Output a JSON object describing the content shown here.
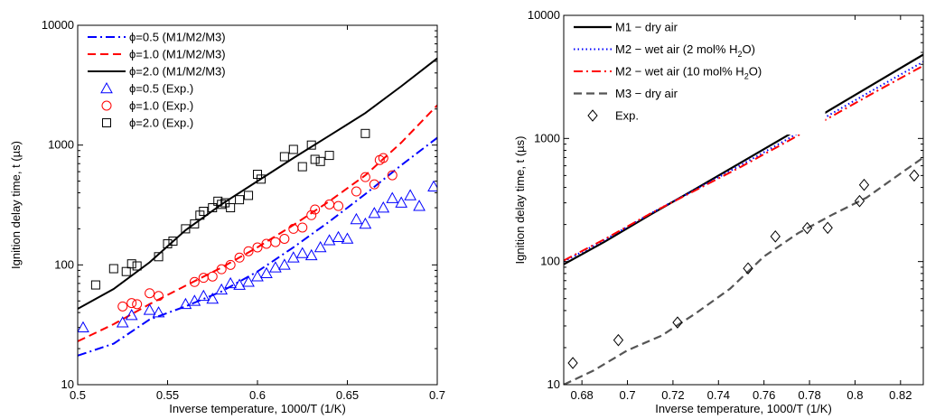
{
  "chart_data": [
    {
      "type": "scatter",
      "xlabel": "Inverse temperature, 1000/T (1/K)",
      "ylabel": "Ignition delay time, t (µs)",
      "xlim": [
        0.5,
        0.7
      ],
      "ylim": [
        10,
        10000
      ],
      "yscale": "log",
      "grid": false,
      "legend_position": "top-left",
      "x_ticks": [
        0.5,
        0.55,
        0.6,
        0.65,
        0.7
      ],
      "x_tick_labels": [
        "0.5",
        "0.55",
        "0.6",
        "0.65",
        "0.7"
      ],
      "y_ticks": [
        10,
        100,
        1000,
        10000
      ],
      "y_tick_labels": [
        "10",
        "100",
        "1000",
        "10000"
      ],
      "series": [
        {
          "name": "ϕ=0.5 (M1/M2/M3)",
          "kind": "line",
          "color": "#0000ff",
          "dash": "dashdot",
          "x": [
            0.5,
            0.52,
            0.54,
            0.56,
            0.58,
            0.6,
            0.62,
            0.64,
            0.66,
            0.68,
            0.7
          ],
          "y": [
            17.5,
            22,
            35,
            45,
            60,
            88,
            140,
            230,
            390,
            680,
            1150
          ]
        },
        {
          "name": "ϕ=1.0 (M1/M2/M3)",
          "kind": "line",
          "color": "#ff0000",
          "dash": "dash",
          "x": [
            0.5,
            0.52,
            0.54,
            0.56,
            0.58,
            0.6,
            0.62,
            0.64,
            0.66,
            0.68,
            0.7
          ],
          "y": [
            23,
            32,
            47,
            67,
            95,
            140,
            215,
            340,
            560,
            1050,
            2150
          ]
        },
        {
          "name": "ϕ=2.0 (M1/M2/M3)",
          "kind": "line",
          "color": "#000000",
          "dash": "solid",
          "x": [
            0.5,
            0.52,
            0.54,
            0.56,
            0.58,
            0.6,
            0.62,
            0.64,
            0.66,
            0.68,
            0.7
          ],
          "y": [
            43,
            63,
            105,
            195,
            320,
            500,
            780,
            1200,
            1850,
            3100,
            5300
          ]
        },
        {
          "name": "ϕ=0.5 (Exp.)",
          "kind": "marker",
          "marker": "triangle",
          "color": "#0000ff",
          "x": [
            0.503,
            0.525,
            0.53,
            0.54,
            0.545,
            0.56,
            0.565,
            0.57,
            0.575,
            0.58,
            0.585,
            0.59,
            0.595,
            0.6,
            0.605,
            0.61,
            0.615,
            0.62,
            0.625,
            0.63,
            0.635,
            0.64,
            0.645,
            0.65,
            0.655,
            0.66,
            0.665,
            0.67,
            0.675,
            0.68,
            0.685,
            0.69,
            0.698
          ],
          "y": [
            30,
            33,
            38,
            42,
            40,
            47,
            50,
            55,
            52,
            62,
            70,
            68,
            72,
            80,
            85,
            95,
            100,
            115,
            125,
            120,
            140,
            160,
            170,
            165,
            240,
            220,
            270,
            300,
            360,
            330,
            380,
            310,
            450
          ]
        },
        {
          "name": "ϕ=1.0 (Exp.)",
          "kind": "marker",
          "marker": "circle",
          "color": "#ff0000",
          "x": [
            0.525,
            0.53,
            0.533,
            0.54,
            0.545,
            0.565,
            0.57,
            0.575,
            0.58,
            0.585,
            0.59,
            0.595,
            0.6,
            0.605,
            0.61,
            0.615,
            0.62,
            0.625,
            0.63,
            0.632,
            0.64,
            0.645,
            0.655,
            0.66,
            0.665,
            0.668,
            0.67,
            0.675
          ],
          "y": [
            45,
            48,
            47,
            58,
            55,
            72,
            78,
            80,
            92,
            100,
            115,
            130,
            140,
            150,
            155,
            165,
            200,
            205,
            260,
            290,
            320,
            310,
            410,
            540,
            470,
            750,
            780,
            560
          ]
        },
        {
          "name": "ϕ=2.0 (Exp.)",
          "kind": "marker",
          "marker": "square",
          "color": "#000000",
          "x": [
            0.51,
            0.52,
            0.527,
            0.53,
            0.533,
            0.545,
            0.55,
            0.553,
            0.56,
            0.565,
            0.568,
            0.57,
            0.575,
            0.578,
            0.58,
            0.582,
            0.585,
            0.59,
            0.595,
            0.6,
            0.602,
            0.615,
            0.62,
            0.625,
            0.63,
            0.632,
            0.635,
            0.64,
            0.66
          ],
          "y": [
            68,
            93,
            88,
            102,
            98,
            117,
            150,
            158,
            200,
            220,
            260,
            280,
            300,
            340,
            320,
            330,
            300,
            350,
            380,
            570,
            520,
            800,
            920,
            660,
            1000,
            760,
            730,
            820,
            1250
          ]
        }
      ]
    },
    {
      "type": "scatter",
      "xlabel": "Inverse temperature, 1000/T (1/K)",
      "ylabel": "Ignition delay time, t (µs)",
      "xlim": [
        0.672,
        0.83
      ],
      "ylim": [
        10,
        10000
      ],
      "yscale": "log",
      "grid": false,
      "legend_position": "top-left",
      "x_ticks": [
        0.68,
        0.7,
        0.72,
        0.74,
        0.76,
        0.78,
        0.8,
        0.82
      ],
      "x_tick_labels": [
        "0.68",
        "0.7",
        "0.72",
        "0.74",
        "0.76",
        "0.78",
        "0.8",
        "0.82"
      ],
      "y_ticks": [
        10,
        100,
        1000,
        10000
      ],
      "y_tick_labels": [
        "10",
        "100",
        "1000",
        "10000"
      ],
      "series": [
        {
          "name": "M1 − dry air",
          "kind": "line",
          "color": "#000000",
          "dash": "solid",
          "width": 2.2,
          "x": [
            0.672,
            0.69,
            0.71,
            0.73,
            0.75,
            0.77,
            0.79,
            0.81,
            0.83
          ],
          "y": [
            95,
            145,
            240,
            390,
            640,
            1050,
            1750,
            2900,
            4800
          ]
        },
        {
          "name_prefix": "M2 − wet air (2 mol% H",
          "name_suffix": "O)",
          "subscript": "2",
          "kind": "line",
          "color": "#0000ff",
          "dash": "dot",
          "x": [
            0.672,
            0.69,
            0.71,
            0.73,
            0.75,
            0.77,
            0.79,
            0.81,
            0.83
          ],
          "y": [
            100,
            150,
            245,
            385,
            610,
            980,
            1600,
            2600,
            4200
          ]
        },
        {
          "name_prefix": "M2 − wet air (10 mol% H",
          "name_suffix": "O)",
          "subscript": "2",
          "kind": "line",
          "color": "#ff0000",
          "dash": "dashdot",
          "x": [
            0.672,
            0.69,
            0.71,
            0.73,
            0.75,
            0.77,
            0.79,
            0.81,
            0.83
          ],
          "y": [
            102,
            152,
            245,
            380,
            590,
            940,
            1520,
            2450,
            3900
          ]
        },
        {
          "name": "M3 − dry air",
          "kind": "line",
          "color": "#555555",
          "dash": "dash",
          "width": 2.2,
          "x": [
            0.672,
            0.685,
            0.7,
            0.715,
            0.73,
            0.745,
            0.76,
            0.775,
            0.79,
            0.805,
            0.82,
            0.83
          ],
          "y": [
            10,
            13,
            19,
            25,
            38,
            60,
            110,
            170,
            240,
            330,
            520,
            700
          ]
        },
        {
          "name": "Exp.",
          "kind": "marker",
          "marker": "diamond",
          "color": "#000000",
          "x": [
            0.676,
            0.696,
            0.722,
            0.753,
            0.765,
            0.779,
            0.788,
            0.802,
            0.804,
            0.826
          ],
          "y": [
            15,
            23,
            32,
            88,
            160,
            187,
            188,
            310,
            420,
            500
          ]
        }
      ]
    }
  ]
}
